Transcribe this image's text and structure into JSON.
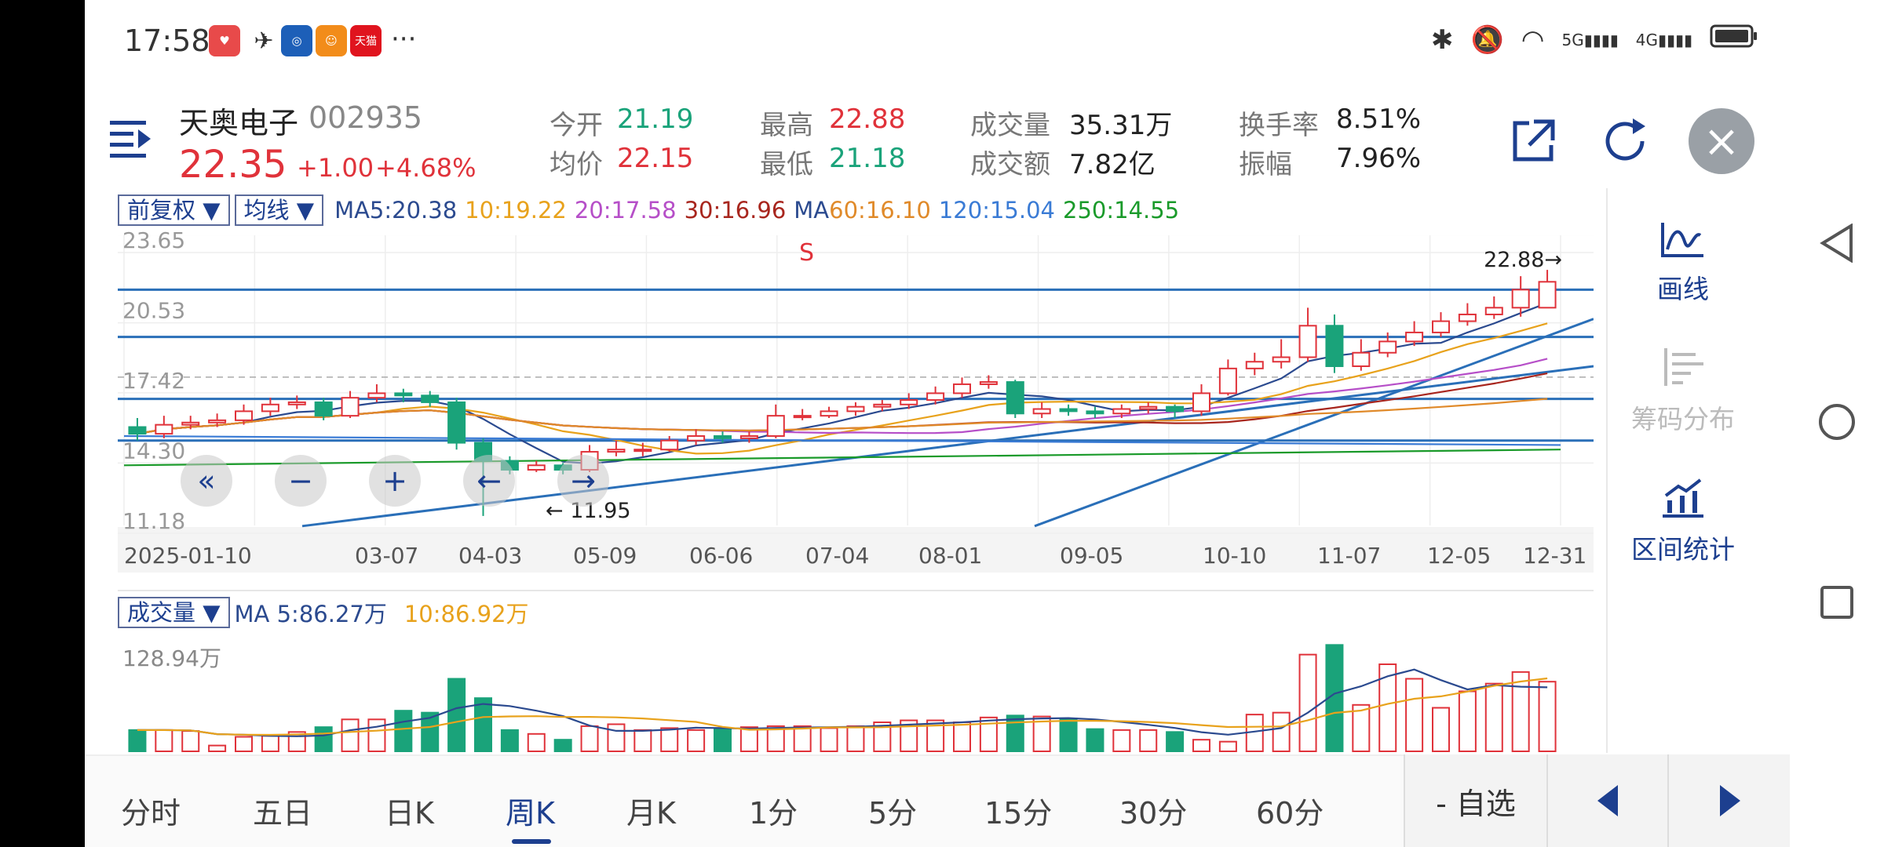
{
  "status": {
    "time": "17:58",
    "icons": [
      "huawei-app-icon",
      "bird-app-icon",
      "bank-app-icon",
      "orange-app-icon",
      "tmall-app-icon",
      "more-dots-icon"
    ],
    "tmall_label": "天猫",
    "more": "···",
    "right_icons": [
      "bluetooth-icon",
      "mute-icon",
      "wifi-icon",
      "5g-signal-icon",
      "4g-signal-icon",
      "battery-icon"
    ],
    "sig5g": "5G",
    "sig4g": "4G"
  },
  "stock": {
    "name": "天奥电子",
    "code": "002935",
    "price": "22.35",
    "change": "+1.00",
    "change_pct": "+4.68%"
  },
  "stats": [
    {
      "label": "今开",
      "value": "21.19",
      "color": "#1aa37a"
    },
    {
      "label": "均价",
      "value": "22.15",
      "color": "#e0323a"
    },
    {
      "label": "最高",
      "value": "22.88",
      "color": "#e0323a"
    },
    {
      "label": "最低",
      "value": "21.18",
      "color": "#1aa37a"
    },
    {
      "label": "成交量",
      "value": "35.31万",
      "color": "#222"
    },
    {
      "label": "成交额",
      "value": "7.82亿",
      "color": "#222"
    },
    {
      "label": "换手率",
      "value": "8.51%",
      "color": "#222"
    },
    {
      "label": "振幅",
      "value": "7.96%",
      "color": "#222"
    }
  ],
  "chart": {
    "adjust_btn": "前复权 ▼",
    "ma_btn": "均线 ▼",
    "ma_values": [
      {
        "text": "MA5:20.38",
        "color": "#2b4a8f"
      },
      {
        "text": "10:19.22",
        "color": "#e8a21c"
      },
      {
        "text": "20:17.58",
        "color": "#b64fc8"
      },
      {
        "text": "30:16.96",
        "color": "#a8261e"
      },
      {
        "text": "MA",
        "color": "#2b4a8f"
      },
      {
        "text": "60:16.10",
        "color": "#e08a2a"
      },
      {
        "text": "120:15.04",
        "color": "#3a7bd5"
      },
      {
        "text": "250:14.55",
        "color": "#1a9a2a"
      }
    ],
    "y_labels": [
      "23.65",
      "20.53",
      "17.42",
      "14.30",
      "11.18"
    ],
    "marker_s": "S",
    "high_label": "22.88→",
    "low_label": "← 11.95",
    "x_labels": [
      "2025-01-10",
      "03-07",
      "04-03",
      "05-09",
      "06-06",
      "07-04",
      "08-01",
      "09-05",
      "10-10",
      "11-07",
      "12-05",
      "12-31"
    ],
    "zoom_buttons": [
      "«",
      "−",
      "+",
      "←",
      "→"
    ],
    "vol_btn": "成交量 ▼",
    "vol_ma5": "MA 5:86.27万",
    "vol_ma10": "10:86.92万",
    "vol_max": "128.94万"
  },
  "chart_data": {
    "type": "candlestick",
    "ylim": [
      11.18,
      23.65
    ],
    "categories": [
      "2025-01-10",
      "03-07",
      "04-03",
      "05-09",
      "06-06",
      "07-04",
      "08-01",
      "09-05",
      "10-10",
      "11-07",
      "12-05",
      "12-31"
    ],
    "candles": [
      [
        15.9,
        15.6,
        16.3,
        15.3
      ],
      [
        15.6,
        16.0,
        16.4,
        15.4
      ],
      [
        16.0,
        16.1,
        16.4,
        15.8
      ],
      [
        16.1,
        16.2,
        16.5,
        15.9
      ],
      [
        16.2,
        16.6,
        16.9,
        16.0
      ],
      [
        16.6,
        16.9,
        17.2,
        16.4
      ],
      [
        16.9,
        17.0,
        17.3,
        16.7
      ],
      [
        17.0,
        16.4,
        17.2,
        16.2
      ],
      [
        16.4,
        17.2,
        17.5,
        16.3
      ],
      [
        17.2,
        17.4,
        17.8,
        17.0
      ],
      [
        17.4,
        17.3,
        17.6,
        17.0
      ],
      [
        17.3,
        17.0,
        17.5,
        16.8
      ],
      [
        17.0,
        15.2,
        17.2,
        14.9
      ],
      [
        15.2,
        14.4,
        15.4,
        11.95
      ],
      [
        14.4,
        14.0,
        14.6,
        13.8
      ],
      [
        14.0,
        14.2,
        14.4,
        13.9
      ],
      [
        14.2,
        14.0,
        14.3,
        13.8
      ],
      [
        14.0,
        14.8,
        15.1,
        13.9
      ],
      [
        14.8,
        14.9,
        15.3,
        14.6
      ],
      [
        14.9,
        14.9,
        15.2,
        14.6
      ],
      [
        14.9,
        15.3,
        15.5,
        14.8
      ],
      [
        15.3,
        15.5,
        15.8,
        15.1
      ],
      [
        15.5,
        15.4,
        15.7,
        15.2
      ],
      [
        15.4,
        15.5,
        15.7,
        15.2
      ],
      [
        15.5,
        16.4,
        16.9,
        15.4
      ],
      [
        16.4,
        16.4,
        16.7,
        16.2
      ],
      [
        16.4,
        16.6,
        16.8,
        16.3
      ],
      [
        16.6,
        16.8,
        17.0,
        16.4
      ],
      [
        16.8,
        16.9,
        17.1,
        16.6
      ],
      [
        16.9,
        17.1,
        17.4,
        16.7
      ],
      [
        17.1,
        17.4,
        17.7,
        16.9
      ],
      [
        17.4,
        17.8,
        18.1,
        17.2
      ],
      [
        17.8,
        17.9,
        18.2,
        17.6
      ],
      [
        17.9,
        16.5,
        18.0,
        16.3
      ],
      [
        16.5,
        16.7,
        17.0,
        16.3
      ],
      [
        16.7,
        16.6,
        16.9,
        16.4
      ],
      [
        16.6,
        16.5,
        16.8,
        16.3
      ],
      [
        16.5,
        16.7,
        16.9,
        16.3
      ],
      [
        16.7,
        16.8,
        17.0,
        16.5
      ],
      [
        16.8,
        16.6,
        16.9,
        16.3
      ],
      [
        16.6,
        17.4,
        17.8,
        16.4
      ],
      [
        17.4,
        18.5,
        18.9,
        17.3
      ],
      [
        18.5,
        18.8,
        19.2,
        18.2
      ],
      [
        18.8,
        19.0,
        19.8,
        18.5
      ],
      [
        19.0,
        20.4,
        21.2,
        18.8
      ],
      [
        20.4,
        18.6,
        20.9,
        18.3
      ],
      [
        18.6,
        19.2,
        19.8,
        18.4
      ],
      [
        19.2,
        19.7,
        20.1,
        19.0
      ],
      [
        19.7,
        20.1,
        20.6,
        19.5
      ],
      [
        20.1,
        20.6,
        21.0,
        19.9
      ],
      [
        20.6,
        20.9,
        21.4,
        20.4
      ],
      [
        20.9,
        21.2,
        21.7,
        20.7
      ],
      [
        21.2,
        22.0,
        22.6,
        20.8
      ],
      [
        21.2,
        22.35,
        22.88,
        21.18
      ]
    ],
    "volume_max": "128.94万",
    "volume_ma5": "86.27万",
    "volume_ma10": "86.92万"
  },
  "tools": [
    {
      "label": "画线",
      "icon": "draw-line-icon",
      "enabled": true
    },
    {
      "label": "筹码分布",
      "icon": "chip-distribution-icon",
      "enabled": false
    },
    {
      "label": "区间统计",
      "icon": "interval-stats-icon",
      "enabled": true
    }
  ],
  "tabs": [
    "分时",
    "五日",
    "日K",
    "周K",
    "月K",
    "1分",
    "5分",
    "15分",
    "30分",
    "60分"
  ],
  "active_tab": "周K",
  "watchlist_btn": "- 自选"
}
